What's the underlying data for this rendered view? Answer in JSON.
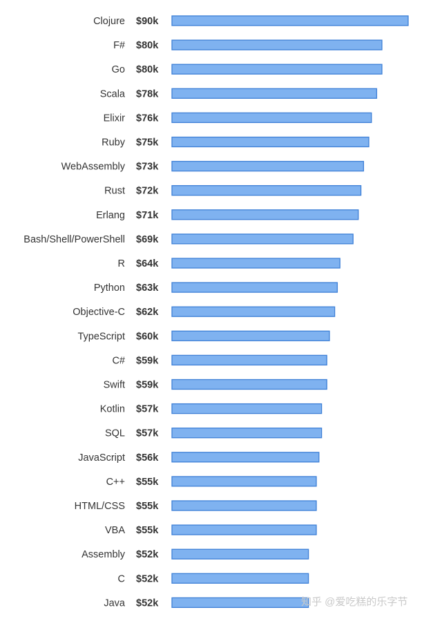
{
  "chart_data": {
    "type": "bar",
    "orientation": "horizontal",
    "title": "",
    "xlabel": "",
    "ylabel": "",
    "categories": [
      "Clojure",
      "F#",
      "Go",
      "Scala",
      "Elixir",
      "Ruby",
      "WebAssembly",
      "Rust",
      "Erlang",
      "Bash/Shell/PowerShell",
      "R",
      "Python",
      "Objective-C",
      "TypeScript",
      "C#",
      "Swift",
      "Kotlin",
      "SQL",
      "JavaScript",
      "C++",
      "HTML/CSS",
      "VBA",
      "Assembly",
      "C",
      "Java"
    ],
    "values": [
      90,
      80,
      80,
      78,
      76,
      75,
      73,
      72,
      71,
      69,
      64,
      63,
      62,
      60,
      59,
      59,
      57,
      57,
      56,
      55,
      55,
      55,
      52,
      52,
      52
    ],
    "value_labels": [
      "$90k",
      "$80k",
      "$80k",
      "$78k",
      "$76k",
      "$75k",
      "$73k",
      "$72k",
      "$71k",
      "$69k",
      "$64k",
      "$63k",
      "$62k",
      "$60k",
      "$59k",
      "$59k",
      "$57k",
      "$57k",
      "$56k",
      "$55k",
      "$55k",
      "$55k",
      "$52k",
      "$52k",
      "$52k"
    ],
    "xlim": [
      0,
      90
    ],
    "grid": false,
    "colors": {
      "bar_fill": "#7fb2f0",
      "bar_stroke": "#3d7fd6",
      "text": "#333333"
    }
  },
  "watermark": {
    "text": "知乎 @爱吃糕的乐字节"
  }
}
